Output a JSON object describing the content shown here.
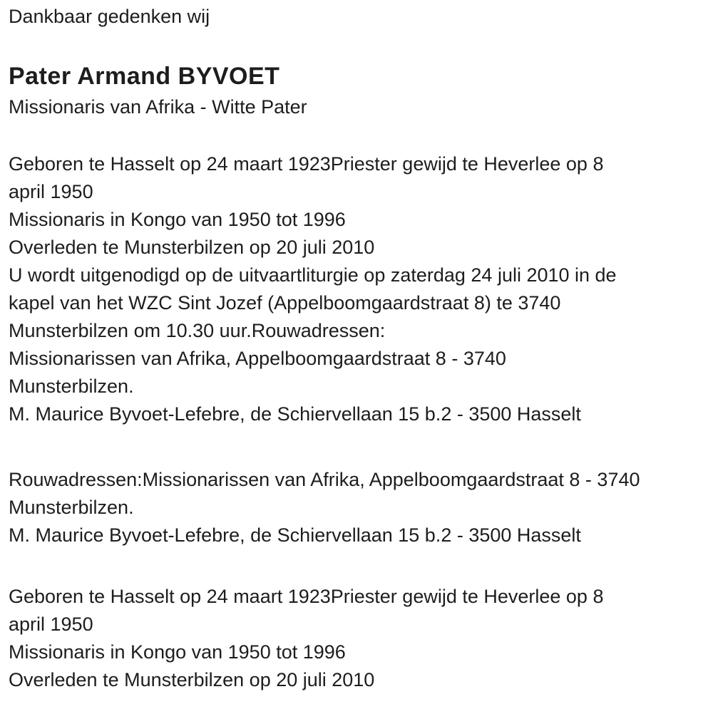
{
  "document": {
    "intro": "Dankbaar gedenken wij",
    "title": "Pater Armand BYVOET",
    "subtitle": "Missionaris van Afrika - Witte Pater",
    "paragraphs": [
      "Geboren te Hasselt op 24 maart 1923Priester gewijd te Heverlee op 8\napril 1950\nMissionaris in Kongo van 1950 tot 1996\nOverleden te Munsterbilzen op 20 juli 2010\nU wordt uitgenodigd op de uitvaartliturgie op zaterdag 24 juli 2010 in de\nkapel van het WZC Sint Jozef (Appelboomgaardstraat 8) te 3740\nMunsterbilzen om 10.30 uur.Rouwadressen:\nMissionarissen van Afrika, Appelboomgaardstraat 8 - 3740\nMunsterbilzen.\nM. Maurice Byvoet-Lefebre, de Schiervellaan 15 b.2 - 3500 Hasselt",
      "Rouwadressen:Missionarissen van Afrika, Appelboomgaardstraat 8 - 3740\nMunsterbilzen.\nM. Maurice Byvoet-Lefebre, de Schiervellaan 15 b.2 - 3500 Hasselt",
      "Geboren te Hasselt op 24 maart 1923Priester gewijd te Heverlee op 8\napril 1950\nMissionaris in Kongo van 1950 tot 1996\nOverleden te Munsterbilzen op 20 juli 2010"
    ],
    "colors": {
      "background": "#ffffff",
      "text": "#1d1d1d"
    }
  }
}
